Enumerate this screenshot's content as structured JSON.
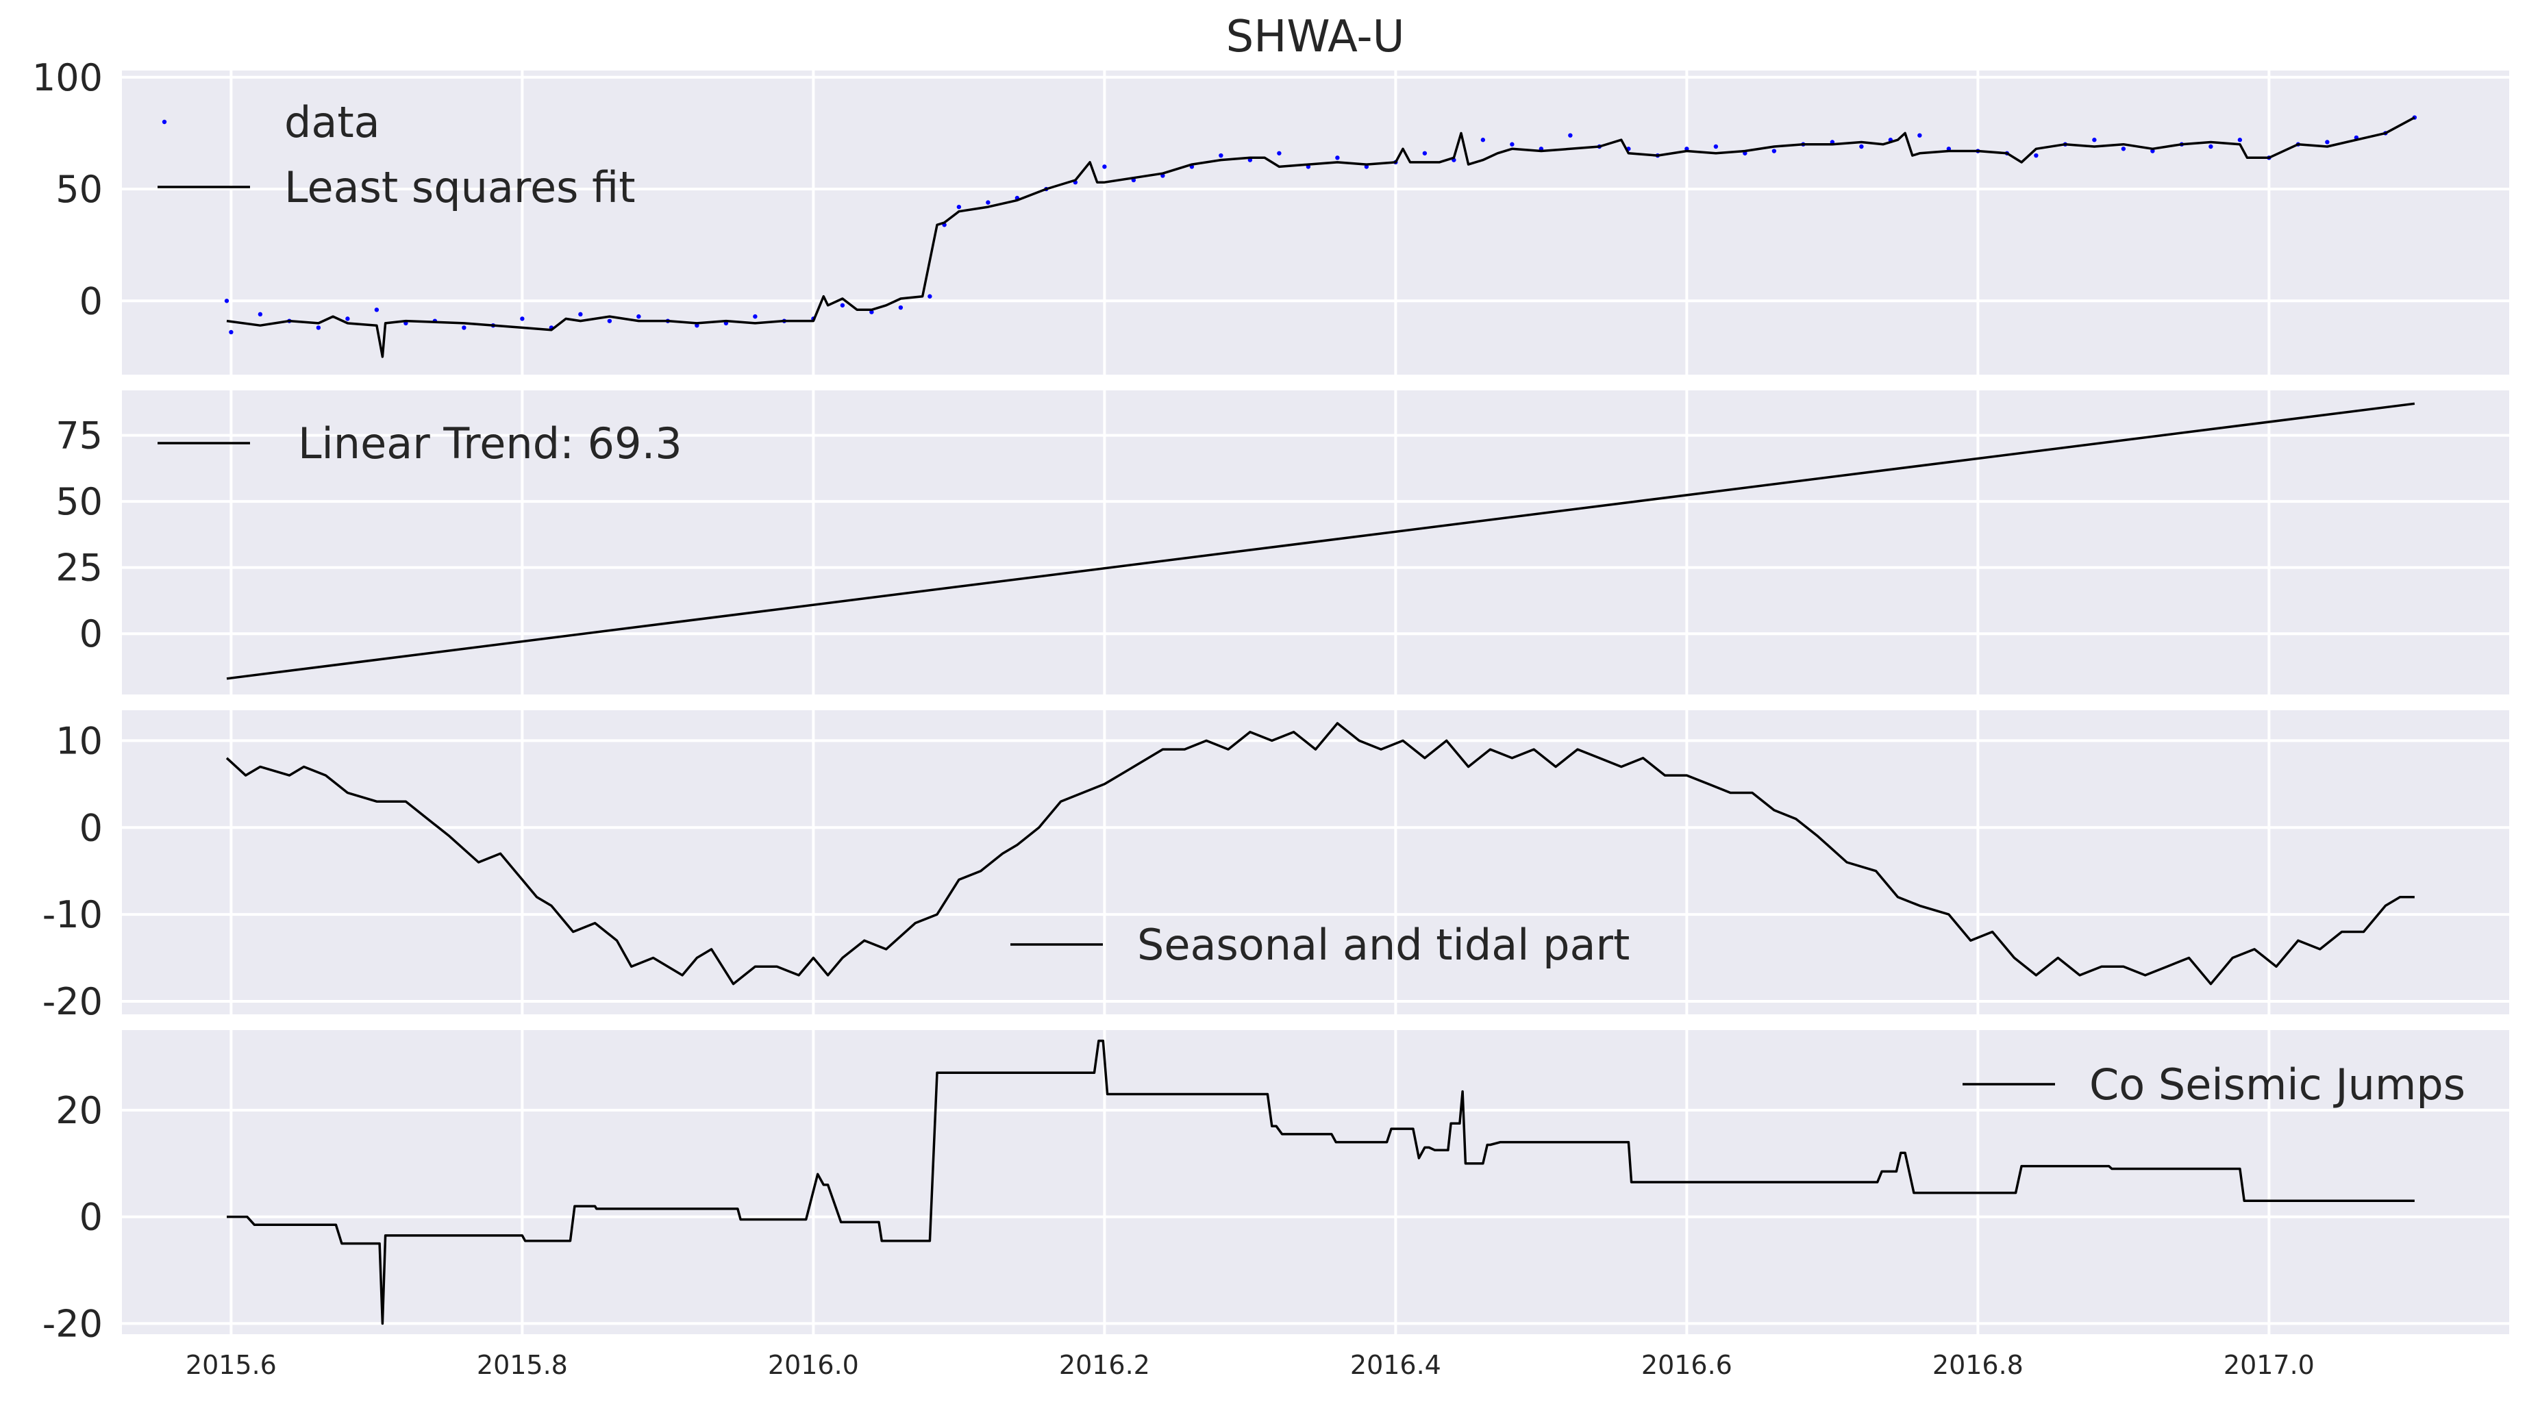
{
  "title": "SHWA-U",
  "colors": {
    "axes_background": "#eaeaf2",
    "grid": "#ffffff",
    "fit_line": "#000000",
    "data_points": "#0000ff",
    "text": "#262626"
  },
  "chart_data": [
    {
      "type": "scatter",
      "title": "SHWA-U",
      "xlim": [
        2015.525,
        2017.165
      ],
      "ylim": [
        -33,
        103
      ],
      "yticks": [
        0,
        50,
        100
      ],
      "xticks_visible": false,
      "grid": true,
      "legend": {
        "position": "top-left",
        "entries": [
          "data",
          "Least squares fit"
        ]
      },
      "series": [
        {
          "name": "data",
          "style": "points",
          "color": "#0000ff",
          "x": [
            2015.5,
            2015.597,
            2015.6,
            2015.62,
            2015.64,
            2015.66,
            2015.68,
            2015.7,
            2015.72,
            2015.74,
            2015.76,
            2015.78,
            2015.8,
            2015.82,
            2015.84,
            2015.86,
            2015.88,
            2015.9,
            2015.92,
            2015.94,
            2015.96,
            2015.98,
            2016.0,
            2016.02,
            2016.04,
            2016.06,
            2016.08,
            2016.09,
            2016.1,
            2016.12,
            2016.14,
            2016.16,
            2016.18,
            2016.2,
            2016.22,
            2016.24,
            2016.26,
            2016.28,
            2016.3,
            2016.32,
            2016.34,
            2016.36,
            2016.38,
            2016.4,
            2016.42,
            2016.44,
            2016.46,
            2016.48,
            2016.5,
            2016.52,
            2016.54,
            2016.56,
            2016.58,
            2016.6,
            2016.62,
            2016.64,
            2016.66,
            2016.68,
            2016.7,
            2016.72,
            2016.74,
            2016.76,
            2016.78,
            2016.8,
            2016.82,
            2016.84,
            2016.86,
            2016.88,
            2016.9,
            2016.92,
            2016.94,
            2016.96,
            2016.98,
            2017.0,
            2017.02,
            2017.04,
            2017.06,
            2017.08,
            2017.1
          ],
          "y": [
            78,
            0,
            -14,
            -6,
            -9,
            -12,
            -8,
            -4,
            -10,
            -9,
            -12,
            -11,
            -8,
            -12,
            -6,
            -9,
            -7,
            -9,
            -11,
            -10,
            -7,
            -9,
            -8,
            -2,
            -5,
            -3,
            2,
            34,
            42,
            44,
            46,
            50,
            53,
            60,
            54,
            56,
            60,
            65,
            63,
            66,
            60,
            64,
            60,
            62,
            66,
            63,
            72,
            70,
            68,
            74,
            69,
            68,
            65,
            68,
            69,
            66,
            67,
            70,
            71,
            69,
            72,
            74,
            68,
            67,
            66,
            65,
            70,
            72,
            68,
            67,
            70,
            69,
            72,
            64,
            70,
            71,
            73,
            75,
            82
          ]
        },
        {
          "name": "Least squares fit",
          "style": "line",
          "color": "#000000",
          "x": [
            2015.597,
            2015.62,
            2015.64,
            2015.66,
            2015.67,
            2015.68,
            2015.7,
            2015.704,
            2015.706,
            2015.72,
            2015.76,
            2015.8,
            2015.82,
            2015.83,
            2015.84,
            2015.86,
            2015.88,
            2015.9,
            2015.92,
            2015.94,
            2015.96,
            2015.98,
            2016.0,
            2016.007,
            2016.01,
            2016.02,
            2016.03,
            2016.04,
            2016.05,
            2016.06,
            2016.075,
            2016.085,
            2016.09,
            2016.1,
            2016.12,
            2016.14,
            2016.16,
            2016.18,
            2016.19,
            2016.195,
            2016.2,
            2016.22,
            2016.24,
            2016.26,
            2016.28,
            2016.3,
            2016.31,
            2016.32,
            2016.34,
            2016.36,
            2016.38,
            2016.4,
            2016.405,
            2016.41,
            2016.43,
            2016.44,
            2016.445,
            2016.45,
            2016.46,
            2016.47,
            2016.48,
            2016.5,
            2016.52,
            2016.54,
            2016.555,
            2016.56,
            2016.58,
            2016.6,
            2016.62,
            2016.64,
            2016.66,
            2016.68,
            2016.7,
            2016.72,
            2016.735,
            2016.745,
            2016.75,
            2016.755,
            2016.76,
            2016.78,
            2016.8,
            2016.82,
            2016.83,
            2016.84,
            2016.86,
            2016.88,
            2016.9,
            2016.92,
            2016.94,
            2016.96,
            2016.98,
            2016.985,
            2017.0,
            2017.02,
            2017.04,
            2017.06,
            2017.08,
            2017.1
          ],
          "y": [
            -9,
            -11,
            -9,
            -10,
            -7,
            -10,
            -11,
            -25,
            -10,
            -9,
            -10,
            -12,
            -13,
            -8,
            -9,
            -7,
            -9,
            -9,
            -10,
            -9,
            -10,
            -9,
            -9,
            2,
            -2,
            1,
            -4,
            -4,
            -2,
            1,
            2,
            34,
            35,
            40,
            42,
            45,
            50,
            54,
            62,
            53,
            53,
            55,
            57,
            61,
            63,
            64,
            64,
            60,
            61,
            62,
            61,
            62,
            68,
            62,
            62,
            64,
            75,
            61,
            63,
            66,
            68,
            67,
            68,
            69,
            72,
            66,
            65,
            67,
            66,
            67,
            69,
            70,
            70,
            71,
            70,
            72,
            75,
            65,
            66,
            67,
            67,
            66,
            62,
            68,
            70,
            69,
            70,
            68,
            70,
            71,
            70,
            64,
            64,
            70,
            69,
            72,
            75,
            82
          ]
        }
      ]
    },
    {
      "type": "line",
      "xlim": [
        2015.525,
        2017.165
      ],
      "ylim": [
        -23,
        92
      ],
      "yticks": [
        0,
        25,
        50,
        75
      ],
      "xticks_visible": false,
      "grid": true,
      "legend": {
        "position": "top-left",
        "entries": [
          "Linear Trend: 69.3"
        ]
      },
      "series": [
        {
          "name": "Linear Trend: 69.3",
          "color": "#000000",
          "x": [
            2015.597,
            2017.1
          ],
          "y": [
            -17,
            87
          ]
        }
      ]
    },
    {
      "type": "line",
      "xlim": [
        2015.525,
        2017.165
      ],
      "ylim": [
        -21.5,
        13.5
      ],
      "yticks": [
        -20,
        -10,
        0,
        10
      ],
      "xticks_visible": false,
      "grid": true,
      "legend": {
        "position": "lower-center",
        "entries": [
          "Seasonal and tidal part"
        ]
      },
      "series": [
        {
          "name": "Seasonal and tidal part",
          "color": "#000000",
          "x": [
            2015.597,
            2015.61,
            2015.62,
            2015.64,
            2015.65,
            2015.665,
            2015.68,
            2015.7,
            2015.72,
            2015.735,
            2015.75,
            2015.77,
            2015.785,
            2015.795,
            2015.81,
            2015.82,
            2015.835,
            2015.85,
            2015.865,
            2015.875,
            2015.89,
            2015.91,
            2015.92,
            2015.93,
            2015.945,
            2015.96,
            2015.975,
            2015.99,
            2016.0,
            2016.01,
            2016.02,
            2016.035,
            2016.05,
            2016.07,
            2016.085,
            2016.1,
            2016.115,
            2016.13,
            2016.14,
            2016.155,
            2016.17,
            2016.185,
            2016.2,
            2016.22,
            2016.24,
            2016.255,
            2016.27,
            2016.285,
            2016.3,
            2016.315,
            2016.33,
            2016.345,
            2016.36,
            2016.375,
            2016.39,
            2016.405,
            2016.42,
            2016.435,
            2016.45,
            2016.465,
            2016.48,
            2016.495,
            2016.51,
            2016.525,
            2016.54,
            2016.555,
            2016.57,
            2016.585,
            2016.6,
            2016.615,
            2016.63,
            2016.645,
            2016.66,
            2016.675,
            2016.69,
            2016.71,
            2016.73,
            2016.745,
            2016.76,
            2016.78,
            2016.795,
            2016.81,
            2016.825,
            2016.84,
            2016.855,
            2016.87,
            2016.885,
            2016.9,
            2016.915,
            2016.93,
            2016.945,
            2016.96,
            2016.975,
            2016.99,
            2017.005,
            2017.02,
            2017.035,
            2017.05,
            2017.065,
            2017.08,
            2017.09,
            2017.1
          ],
          "y": [
            8,
            6,
            7,
            6,
            7,
            6,
            4,
            3,
            3,
            1,
            -1,
            -4,
            -3,
            -5,
            -8,
            -9,
            -12,
            -11,
            -13,
            -16,
            -15,
            -17,
            -15,
            -14,
            -18,
            -16,
            -16,
            -17,
            -15,
            -17,
            -15,
            -13,
            -14,
            -11,
            -10,
            -6,
            -5,
            -3,
            -2,
            0,
            3,
            4,
            5,
            7,
            9,
            9,
            10,
            9,
            11,
            10,
            11,
            9,
            12,
            10,
            9,
            10,
            8,
            10,
            7,
            9,
            8,
            9,
            7,
            9,
            8,
            7,
            8,
            6,
            6,
            5,
            4,
            4,
            2,
            1,
            -1,
            -4,
            -5,
            -8,
            -9,
            -10,
            -13,
            -12,
            -15,
            -17,
            -15,
            -17,
            -16,
            -16,
            -17,
            -16,
            -15,
            -18,
            -15,
            -14,
            -16,
            -13,
            -14,
            -12,
            -12,
            -9,
            -8,
            -8
          ]
        }
      ]
    },
    {
      "type": "line",
      "xlim": [
        2015.525,
        2017.165
      ],
      "ylim": [
        -22,
        35
      ],
      "yticks": [
        -20,
        0,
        20
      ],
      "xticks": [
        2015.6,
        2015.8,
        2016.0,
        2016.2,
        2016.4,
        2016.6,
        2016.8,
        2017.0
      ],
      "xtick_labels": [
        "2015.6",
        "2015.8",
        "2016.0",
        "2016.2",
        "2016.4",
        "2016.6",
        "2016.8",
        "2017.0"
      ],
      "grid": true,
      "legend": {
        "position": "top-right",
        "entries": [
          "Co Seismic Jumps"
        ]
      },
      "series": [
        {
          "name": "Co Seismic Jumps",
          "color": "#000000",
          "x": [
            2015.597,
            2015.611,
            2015.616,
            2015.672,
            2015.676,
            2015.702,
            2015.704,
            2015.706,
            2015.8,
            2015.802,
            2015.833,
            2015.836,
            2015.85,
            2015.851,
            2015.862,
            2015.864,
            2015.948,
            2015.95,
            2015.995,
            2016.003,
            2016.007,
            2016.01,
            2016.019,
            2016.023,
            2016.045,
            2016.047,
            2016.08,
            2016.085,
            2016.193,
            2016.196,
            2016.199,
            2016.202,
            2016.312,
            2016.315,
            2016.318,
            2016.322,
            2016.356,
            2016.359,
            2016.394,
            2016.397,
            2016.412,
            2016.416,
            2016.42,
            2016.423,
            2016.427,
            2016.436,
            2016.438,
            2016.444,
            2016.446,
            2016.448,
            2016.451,
            2016.46,
            2016.463,
            2016.465,
            2016.472,
            2016.479,
            2016.56,
            2016.562,
            2016.731,
            2016.734,
            2016.744,
            2016.747,
            2016.75,
            2016.756,
            2016.76,
            2016.762,
            2016.826,
            2016.83,
            2016.89,
            2016.892,
            2016.98,
            2016.983,
            2017.1
          ],
          "y": [
            0,
            0,
            -1.5,
            -1.5,
            -5,
            -5,
            -20,
            -3.5,
            -3.5,
            -4.5,
            -4.5,
            2,
            2,
            1.5,
            1.5,
            1.5,
            1.5,
            -0.5,
            -0.5,
            8,
            6,
            6,
            -1,
            -1,
            -1,
            -4.5,
            -4.5,
            27,
            27,
            33,
            33,
            23,
            23,
            17,
            17,
            15.5,
            15.5,
            14,
            14,
            16.5,
            16.5,
            11,
            13,
            13,
            12.5,
            12.5,
            17.5,
            17.5,
            23.5,
            10,
            10,
            10,
            13.5,
            13.5,
            14,
            14,
            14,
            6.5,
            6.5,
            8.5,
            8.5,
            12,
            12,
            4.5,
            4.5,
            4.5,
            4.5,
            9.5,
            9.5,
            9,
            9,
            3,
            3
          ]
        }
      ]
    }
  ]
}
